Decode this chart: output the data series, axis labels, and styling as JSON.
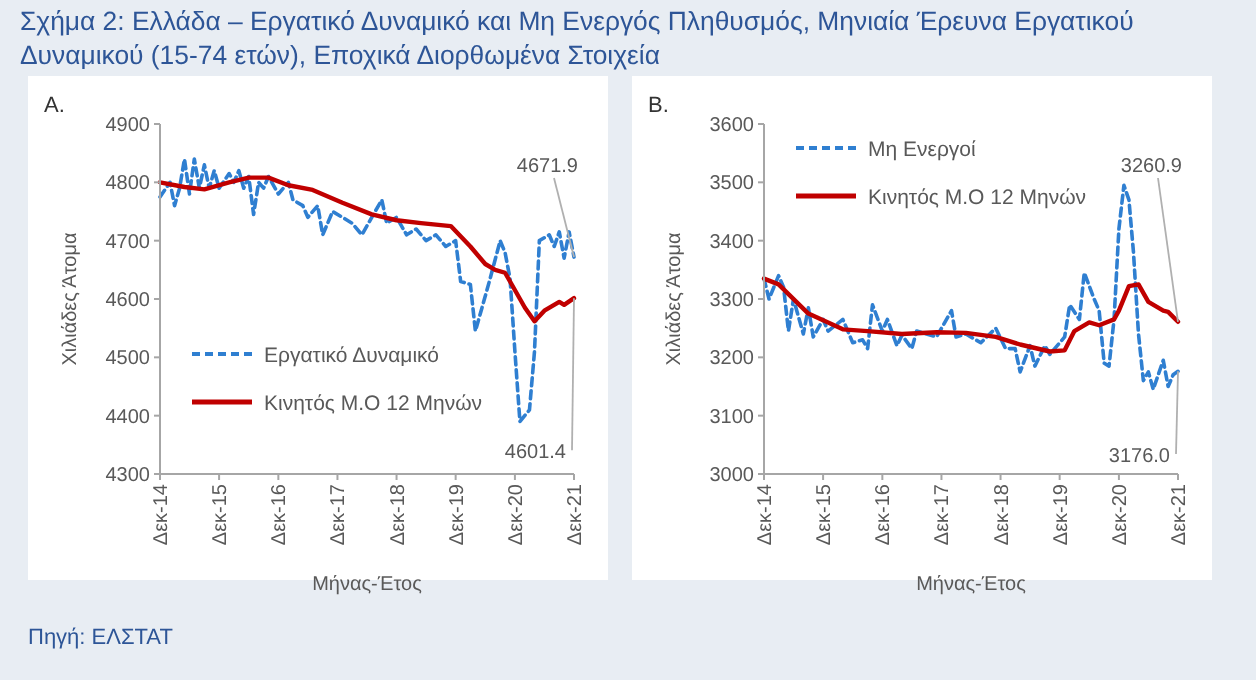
{
  "chart_data": [
    {
      "type": "line",
      "title": "Σχήμα 2: Ελλάδα – Εργατικό Δυναμικό και Μη Ενεργός Πληθυσμός, Μηνιαία Έρευνα Εργατικού Δυναμικού (15-74 ετών), Εποχικά Διορθωμένα Στοιχεία",
      "subtitle": "A.",
      "xlabel": "Μήνας-Έτος",
      "ylabel": "Χιλιάδες Άτομα",
      "xlim": [
        "2014-12",
        "2021-12"
      ],
      "ylim": [
        4300,
        4900
      ],
      "yticks": [
        4300,
        4400,
        4500,
        4600,
        4700,
        4800,
        4900
      ],
      "xticks": [
        {
          "value": "2014-12",
          "label": "Δεκ-14"
        },
        {
          "value": "2015-12",
          "label": "Δεκ-15"
        },
        {
          "value": "2016-12",
          "label": "Δεκ-16"
        },
        {
          "value": "2017-12",
          "label": "Δεκ-17"
        },
        {
          "value": "2018-12",
          "label": "Δεκ-18"
        },
        {
          "value": "2019-12",
          "label": "Δεκ-19"
        },
        {
          "value": "2020-12",
          "label": "Δεκ-20"
        },
        {
          "value": "2021-12",
          "label": "Δεκ-21"
        }
      ],
      "legend": "bottom left",
      "grid": false,
      "series": [
        {
          "name": "Εργατικό Δυναμικό",
          "color": "#2f7fd1",
          "line_style": "dashed",
          "x": [
            "2014-12",
            "2015-02",
            "2015-03",
            "2015-04",
            "2015-05",
            "2015-06",
            "2015-07",
            "2015-08",
            "2015-09",
            "2015-10",
            "2015-11",
            "2015-12",
            "2016-02",
            "2016-03",
            "2016-04",
            "2016-05",
            "2016-06",
            "2016-07",
            "2016-08",
            "2016-09",
            "2016-10",
            "2016-12",
            "2017-02",
            "2017-03",
            "2017-05",
            "2017-06",
            "2017-08",
            "2017-09",
            "2017-11",
            "2018-01",
            "2018-03",
            "2018-05",
            "2018-07",
            "2018-09",
            "2018-10",
            "2018-12",
            "2019-02",
            "2019-04",
            "2019-06",
            "2019-08",
            "2019-10",
            "2019-12",
            "2020-01",
            "2020-03",
            "2020-04",
            "2020-06",
            "2020-07",
            "2020-09",
            "2020-10",
            "2020-11",
            "2020-12",
            "2021-01",
            "2021-03",
            "2021-04",
            "2021-05",
            "2021-07",
            "2021-08",
            "2021-09",
            "2021-10",
            "2021-11",
            "2021-12"
          ],
          "values": [
            4775,
            4800,
            4760,
            4790,
            4840,
            4780,
            4840,
            4790,
            4830,
            4790,
            4820,
            4790,
            4815,
            4800,
            4820,
            4790,
            4810,
            4745,
            4800,
            4790,
            4810,
            4780,
            4800,
            4770,
            4760,
            4740,
            4760,
            4710,
            4750,
            4740,
            4730,
            4710,
            4740,
            4770,
            4730,
            4740,
            4710,
            4720,
            4700,
            4710,
            4690,
            4700,
            4630,
            4625,
            4545,
            4605,
            4635,
            4700,
            4680,
            4635,
            4510,
            4390,
            4410,
            4510,
            4700,
            4710,
            4690,
            4715,
            4670,
            4715,
            4671.9
          ]
        },
        {
          "name": "Κινητός Μ.Ο 12 Μηνών",
          "color": "#c00000",
          "line_style": "solid",
          "x": [
            "2014-12",
            "2015-05",
            "2015-09",
            "2016-02",
            "2016-06",
            "2016-10",
            "2017-02",
            "2017-07",
            "2018-01",
            "2018-07",
            "2018-12",
            "2019-05",
            "2019-11",
            "2020-03",
            "2020-06",
            "2020-08",
            "2020-10",
            "2020-11",
            "2021-02",
            "2021-04",
            "2021-06",
            "2021-09",
            "2021-10",
            "2021-12"
          ],
          "values": [
            4800,
            4792,
            4788,
            4800,
            4808,
            4808,
            4795,
            4787,
            4765,
            4745,
            4735,
            4730,
            4725,
            4690,
            4660,
            4650,
            4645,
            4630,
            4585,
            4562,
            4580,
            4595,
            4590,
            4601.4
          ]
        }
      ],
      "annotations": [
        {
          "text": "4671.9",
          "x": "2021-12",
          "y": 4671.9
        },
        {
          "text": "4601.4",
          "x": "2021-12",
          "y": 4601.4
        }
      ]
    },
    {
      "type": "line",
      "subtitle": "B.",
      "xlabel": "Μήνας-Έτος",
      "ylabel": "Χιλιάδες Άτομα",
      "xlim": [
        "2014-12",
        "2021-12"
      ],
      "ylim": [
        3000,
        3600
      ],
      "yticks": [
        3000,
        3100,
        3200,
        3300,
        3400,
        3500,
        3600
      ],
      "xticks": [
        {
          "value": "2014-12",
          "label": "Δεκ-14"
        },
        {
          "value": "2015-12",
          "label": "Δεκ-15"
        },
        {
          "value": "2016-12",
          "label": "Δεκ-16"
        },
        {
          "value": "2017-12",
          "label": "Δεκ-17"
        },
        {
          "value": "2018-12",
          "label": "Δεκ-18"
        },
        {
          "value": "2019-12",
          "label": "Δεκ-19"
        },
        {
          "value": "2020-12",
          "label": "Δεκ-20"
        },
        {
          "value": "2021-12",
          "label": "Δεκ-21"
        }
      ],
      "legend": "top left",
      "grid": false,
      "series": [
        {
          "name": "Μη Ενεργοί",
          "color": "#2f7fd1",
          "line_style": "dashed",
          "x": [
            "2014-12",
            "2015-01",
            "2015-03",
            "2015-04",
            "2015-05",
            "2015-06",
            "2015-08",
            "2015-09",
            "2015-10",
            "2015-12",
            "2016-01",
            "2016-04",
            "2016-06",
            "2016-08",
            "2016-09",
            "2016-10",
            "2016-12",
            "2017-01",
            "2017-03",
            "2017-04",
            "2017-06",
            "2017-07",
            "2017-11",
            "2018-02",
            "2018-03",
            "2018-05",
            "2018-08",
            "2018-11",
            "2019-01",
            "2019-03",
            "2019-04",
            "2019-06",
            "2019-07",
            "2019-09",
            "2019-10",
            "2020-01",
            "2020-02",
            "2020-04",
            "2020-05",
            "2020-07",
            "2020-08",
            "2020-09",
            "2020-10",
            "2020-11",
            "2020-12",
            "2021-01",
            "2021-02",
            "2021-03",
            "2021-04",
            "2021-05",
            "2021-06",
            "2021-07",
            "2021-08",
            "2021-09",
            "2021-10",
            "2021-11",
            "2021-12"
          ],
          "values": [
            3335,
            3300,
            3340,
            3320,
            3245,
            3300,
            3240,
            3285,
            3235,
            3265,
            3245,
            3265,
            3225,
            3230,
            3215,
            3290,
            3245,
            3265,
            3220,
            3238,
            3215,
            3245,
            3235,
            3280,
            3235,
            3240,
            3225,
            3250,
            3215,
            3215,
            3175,
            3220,
            3185,
            3220,
            3205,
            3235,
            3290,
            3265,
            3345,
            3300,
            3280,
            3190,
            3185,
            3265,
            3420,
            3495,
            3470,
            3380,
            3240,
            3160,
            3175,
            3145,
            3170,
            3195,
            3150,
            3170,
            3176.0
          ]
        },
        {
          "name": "Κινητός Μ.Ο 12 Μηνών",
          "color": "#c00000",
          "line_style": "solid",
          "x": [
            "2014-12",
            "2015-03",
            "2015-09",
            "2016-04",
            "2016-09",
            "2017-04",
            "2017-11",
            "2018-05",
            "2018-11",
            "2019-04",
            "2019-10",
            "2020-01",
            "2020-03",
            "2020-06",
            "2020-08",
            "2020-11",
            "2020-12",
            "2021-02",
            "2021-04",
            "2021-06",
            "2021-09",
            "2021-10",
            "2021-12"
          ],
          "values": [
            3335,
            3325,
            3275,
            3248,
            3245,
            3240,
            3243,
            3242,
            3235,
            3222,
            3210,
            3212,
            3245,
            3260,
            3255,
            3265,
            3280,
            3322,
            3325,
            3295,
            3280,
            3278,
            3260.9
          ]
        }
      ],
      "annotations": [
        {
          "text": "3260.9",
          "x": "2021-12",
          "y": 3260.9
        },
        {
          "text": "3176.0",
          "x": "2021-12",
          "y": 3176.0
        },
        "Πηγή: ΕΛΣΤΑΤ"
      ]
    }
  ]
}
